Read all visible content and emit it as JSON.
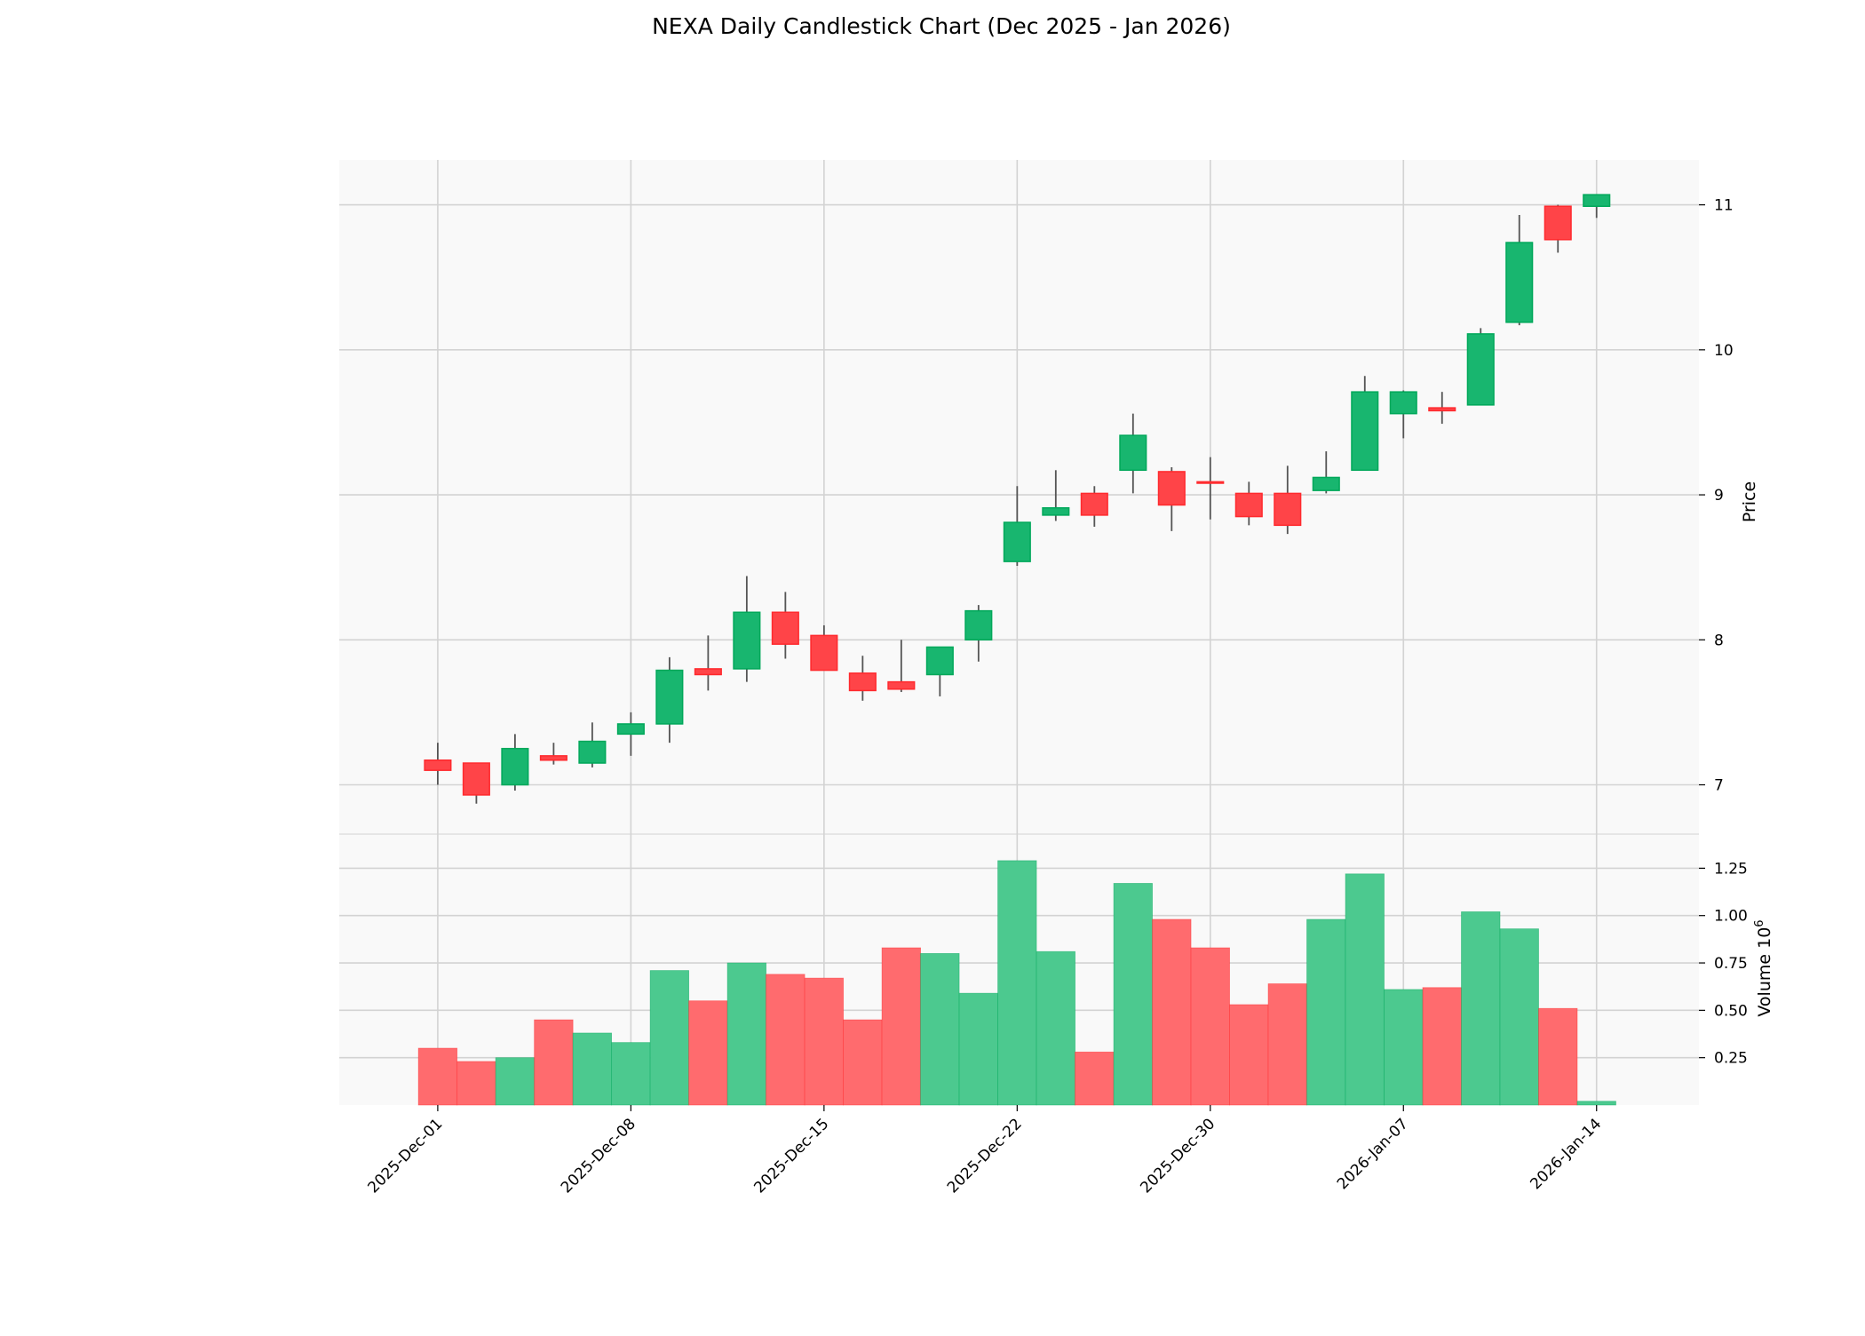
{
  "chart_data": {
    "type": "candlestick",
    "title": "NEXA Daily Candlestick Chart (Dec 2025 - Jan 2026)",
    "dates": [
      "2025-12-01",
      "2025-12-02",
      "2025-12-03",
      "2025-12-04",
      "2025-12-05",
      "2025-12-08",
      "2025-12-09",
      "2025-12-10",
      "2025-12-11",
      "2025-12-12",
      "2025-12-15",
      "2025-12-16",
      "2025-12-17",
      "2025-12-18",
      "2025-12-19",
      "2025-12-22",
      "2025-12-23",
      "2025-12-24",
      "2025-12-26",
      "2025-12-29",
      "2025-12-30",
      "2025-12-31",
      "2026-01-02",
      "2026-01-05",
      "2026-01-06",
      "2026-01-07",
      "2026-01-08",
      "2026-01-09",
      "2026-01-12",
      "2026-01-13",
      "2026-01-14"
    ],
    "open": [
      7.17,
      7.15,
      7.0,
      7.2,
      7.15,
      7.35,
      7.42,
      7.8,
      7.8,
      8.19,
      8.03,
      7.77,
      7.71,
      7.76,
      8.0,
      8.54,
      8.86,
      9.01,
      9.17,
      9.16,
      9.09,
      9.01,
      9.01,
      9.03,
      9.17,
      9.56,
      9.6,
      9.62,
      10.19,
      10.99,
      10.99
    ],
    "high": [
      7.29,
      7.15,
      7.35,
      7.29,
      7.43,
      7.5,
      7.88,
      8.03,
      8.44,
      8.33,
      8.1,
      7.89,
      8.0,
      7.95,
      8.24,
      9.06,
      9.17,
      9.06,
      9.56,
      9.19,
      9.26,
      9.09,
      9.2,
      9.3,
      9.82,
      9.72,
      9.71,
      10.15,
      10.93,
      11.0,
      11.07
    ],
    "low": [
      7.0,
      6.87,
      6.96,
      7.14,
      7.12,
      7.2,
      7.29,
      7.65,
      7.71,
      7.87,
      7.79,
      7.58,
      7.64,
      7.61,
      7.85,
      8.51,
      8.82,
      8.78,
      9.01,
      8.75,
      8.83,
      8.79,
      8.73,
      9.01,
      9.17,
      9.39,
      9.49,
      9.62,
      10.17,
      10.67,
      10.91
    ],
    "close": [
      7.1,
      6.93,
      7.25,
      7.17,
      7.3,
      7.42,
      7.79,
      7.76,
      8.19,
      7.97,
      7.79,
      7.65,
      7.66,
      7.95,
      8.2,
      8.81,
      8.91,
      8.86,
      9.41,
      8.93,
      9.08,
      8.85,
      8.79,
      9.12,
      9.71,
      9.71,
      9.58,
      10.11,
      10.74,
      10.76,
      11.07
    ],
    "volume": [
      0.3,
      0.23,
      0.25,
      0.45,
      0.38,
      0.33,
      0.71,
      0.55,
      0.75,
      0.69,
      0.67,
      0.45,
      0.83,
      0.8,
      0.59,
      1.29,
      0.81,
      0.28,
      1.17,
      0.98,
      0.83,
      0.53,
      0.64,
      0.98,
      1.22,
      0.61,
      0.62,
      1.02,
      0.93,
      0.51,
      0.02
    ],
    "price_axis": {
      "label": "Price",
      "ticks": [
        7,
        8,
        9,
        10,
        11
      ],
      "tick_labels": [
        "7",
        "8",
        "9",
        "10",
        "11"
      ],
      "ylim": [
        6.66,
        11.31
      ],
      "position": "right"
    },
    "volume_axis": {
      "label": "Volume",
      "multiplier": "10",
      "exponent": "6",
      "ticks": [
        0.25,
        0.5,
        0.75,
        1.0,
        1.25
      ],
      "tick_labels": [
        "0.25",
        "0.50",
        "0.75",
        "1.00",
        "1.25"
      ],
      "ylim": [
        0,
        1.43
      ],
      "position": "right"
    },
    "x_ticks": [
      {
        "index": 0,
        "label": "2025-Dec-01"
      },
      {
        "index": 5,
        "label": "2025-Dec-08"
      },
      {
        "index": 10,
        "label": "2025-Dec-15"
      },
      {
        "index": 15,
        "label": "2025-Dec-22"
      },
      {
        "index": 20,
        "label": "2025-Dec-30"
      },
      {
        "index": 25,
        "label": "2026-Jan-07"
      },
      {
        "index": 30,
        "label": "2026-Jan-14"
      }
    ],
    "grid": true,
    "colors": {
      "up": "#18b66f",
      "up_edge": "#00a85a",
      "down": "#ff4448",
      "down_edge": "#ff2a2e",
      "wick": "#555555",
      "panel_bg": "#f9f9f9",
      "grid": "#d3d3d3",
      "vol_up": "#4cc98f",
      "vol_down": "#ff6b6e"
    }
  }
}
